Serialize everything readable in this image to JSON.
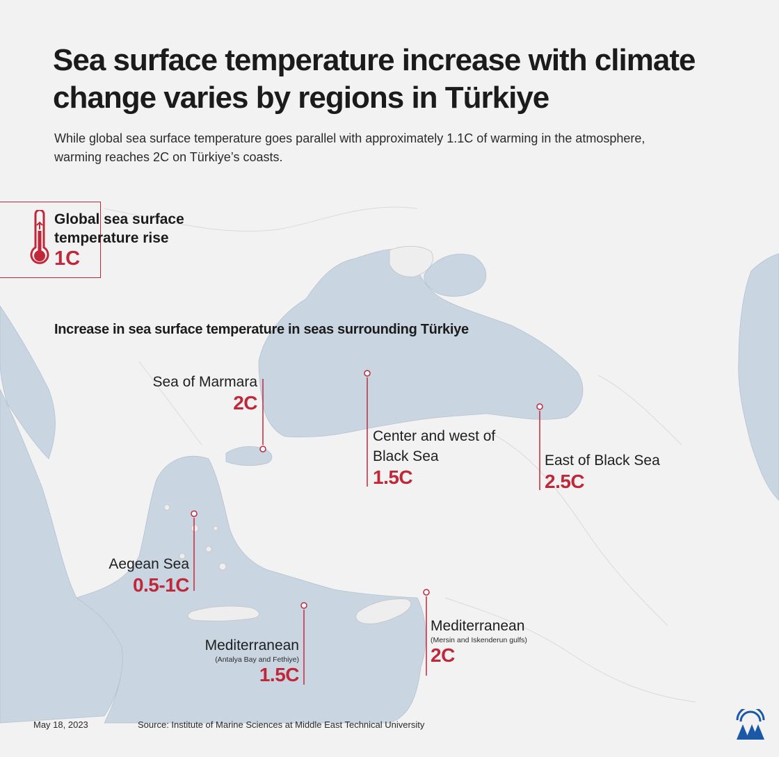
{
  "title": "Sea surface temperature increase with climate change varies by regions in Türkiye",
  "subtitle": "While global sea surface temperature goes parallel with approximately 1.1C of warming in the atmosphere, warming reaches 2C on Türkiye’s coasts.",
  "global": {
    "label": "Global sea surface temperature rise",
    "value": "1C",
    "icon": "thermometer-icon"
  },
  "section_heading": "Increase in sea surface temperature in seas surrounding Türkiye",
  "regions": [
    {
      "name": "Sea of Marmara",
      "sub": "",
      "value": "2C"
    },
    {
      "name": "Center and west of Black Sea",
      "sub": "",
      "value": "1.5C"
    },
    {
      "name": "East of Black Sea",
      "sub": "",
      "value": "2.5C"
    },
    {
      "name": "Aegean Sea",
      "sub": "",
      "value": "0.5-1C"
    },
    {
      "name": "Mediterranean",
      "sub": "(Antalya Bay and Fethiye)",
      "value": "1.5C"
    },
    {
      "name": "Mediterranean",
      "sub": "(Mersin and Iskenderun gulfs)",
      "value": "2C"
    }
  ],
  "footer": {
    "date": "May 18, 2023",
    "source": "Source: Institute of Marine Sciences at Middle East Technical University"
  },
  "colors": {
    "accent": "#c0283a",
    "sea": "#c9d6e2",
    "land": "#f2f2f2",
    "logo": "#1a58a8"
  }
}
